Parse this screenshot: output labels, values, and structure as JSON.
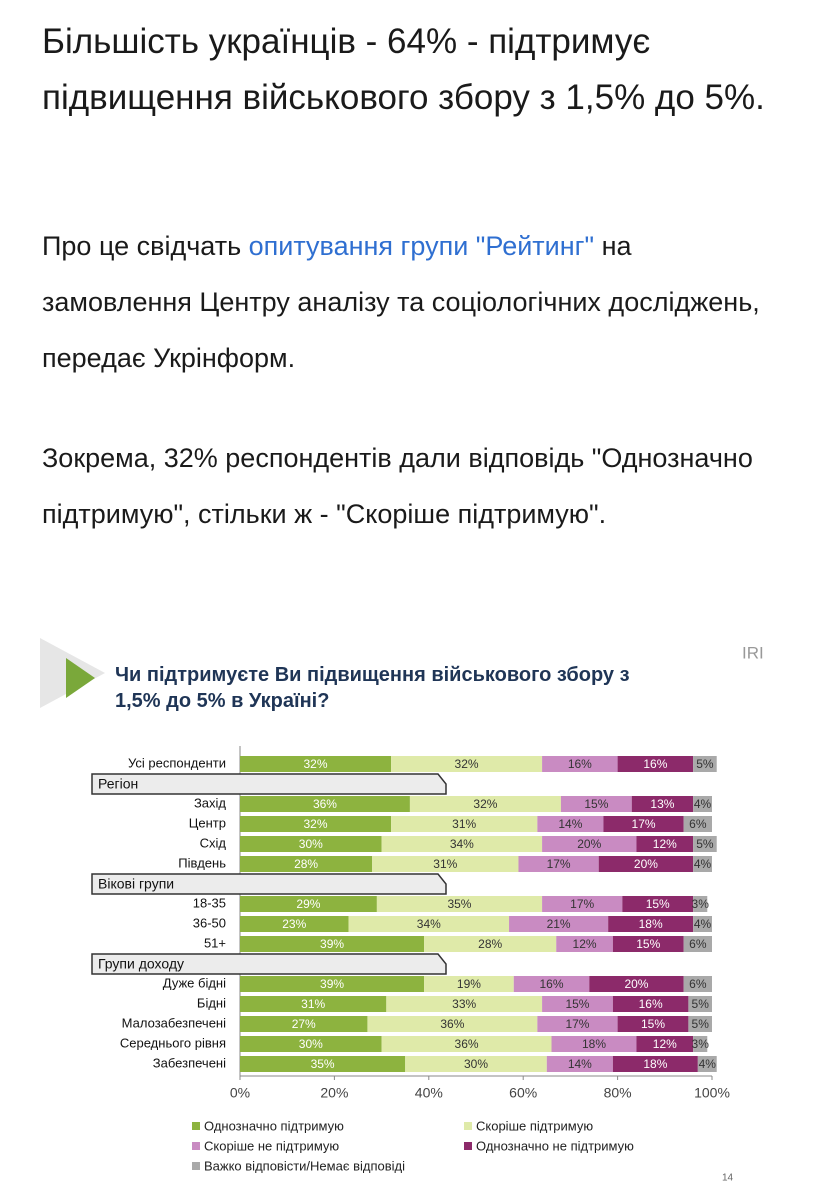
{
  "article": {
    "title": "Більшість українців - 64% - підтримує підвищення військового збору з 1,5% до 5%.",
    "paragraphs": [
      {
        "text_before": "Про це свідчать ",
        "link": "опитування групи \"Рейтинг\"",
        "text_after": " на замовлення Центру аналізу та соціологічних досліджень, передає Укрінформ."
      },
      {
        "text_before": "Зокрема, 32% респондентів дали відповідь \"Однозначно підтримую\", стільки ж - \"Скоріше підтримую\"."
      }
    ]
  },
  "chart_data": {
    "type": "stacked_barh",
    "title": "Чи підтримуєте Ви підвищення військового збору з 1,5% до 5% в Україні?",
    "source": "IRI",
    "page_number": "14",
    "categories": [
      "Усі респонденти",
      "Регіон",
      "Захід",
      "Центр",
      "Схід",
      "Південь",
      "Вікові групи",
      "18-35",
      "36-50",
      "51+",
      "Групи доходу",
      "Дуже бідні",
      "Бідні",
      "Малозабезпечені",
      "Середнього рівня",
      "Забезпечені"
    ],
    "series": [
      {
        "name": "Однозначно підтримую",
        "color": "#8db33f",
        "values": [
          32,
          null,
          36,
          32,
          30,
          28,
          null,
          29,
          23,
          39,
          null,
          39,
          31,
          27,
          30,
          35
        ],
        "value_labels": [
          "32%",
          null,
          "36%",
          "32%",
          "30%",
          "28%",
          null,
          "29%",
          "23%",
          "39%",
          null,
          "39%",
          "31%",
          "27%",
          "30%",
          "35%"
        ]
      },
      {
        "name": "Скоріше підтримую",
        "color": "#dfeaa9",
        "values": [
          32,
          null,
          32,
          31,
          34,
          31,
          null,
          35,
          34,
          28,
          null,
          19,
          33,
          36,
          36,
          30
        ],
        "value_labels": [
          "32%",
          null,
          "32%",
          "31%",
          "34%",
          "31%",
          null,
          "35%",
          "34%",
          "28%",
          null,
          "19%",
          "33%",
          "36%",
          "36%",
          "30%"
        ]
      },
      {
        "name": "Скоріше не підтримую",
        "color": "#c98bc2",
        "values": [
          16,
          null,
          15,
          14,
          20,
          17,
          null,
          17,
          21,
          12,
          null,
          16,
          15,
          17,
          18,
          14
        ],
        "value_labels": [
          "16%",
          null,
          "15%",
          "14%",
          "20%",
          "17%",
          null,
          "17%",
          "21%",
          "12%",
          null,
          "16%",
          "15%",
          "17%",
          "18%",
          "14%"
        ]
      },
      {
        "name": "Однозначно не підтримую",
        "color": "#8c2a6a",
        "values": [
          16,
          null,
          13,
          17,
          12,
          20,
          null,
          15,
          18,
          15,
          null,
          20,
          16,
          15,
          12,
          18
        ],
        "value_labels": [
          "16%",
          null,
          "13%",
          "17%",
          "12%",
          "20%",
          null,
          "15%",
          "18%",
          "15%",
          null,
          "20%",
          "16%",
          "15%",
          "12%",
          "18%"
        ]
      },
      {
        "name": "Важко відповісти/Немає відповіді",
        "color": "#a9a9a9",
        "values": [
          5,
          null,
          4,
          6,
          5,
          4,
          null,
          3,
          4,
          6,
          null,
          6,
          5,
          5,
          3,
          4
        ],
        "value_labels": [
          "5%",
          null,
          "4%",
          "6%",
          "5%",
          "4%",
          null,
          "3%",
          "4%",
          "6%",
          null,
          "6%",
          "5%",
          "5%",
          "3%",
          "4%"
        ]
      }
    ],
    "xlim": [
      0,
      100
    ],
    "xticks": [
      {
        "value": 0,
        "label": "0%"
      },
      {
        "value": 20,
        "label": "20%"
      },
      {
        "value": 40,
        "label": "40%"
      },
      {
        "value": 60,
        "label": "60%"
      },
      {
        "value": 80,
        "label": "80%"
      },
      {
        "value": 100,
        "label": "100%"
      }
    ],
    "legend": "bottom"
  }
}
